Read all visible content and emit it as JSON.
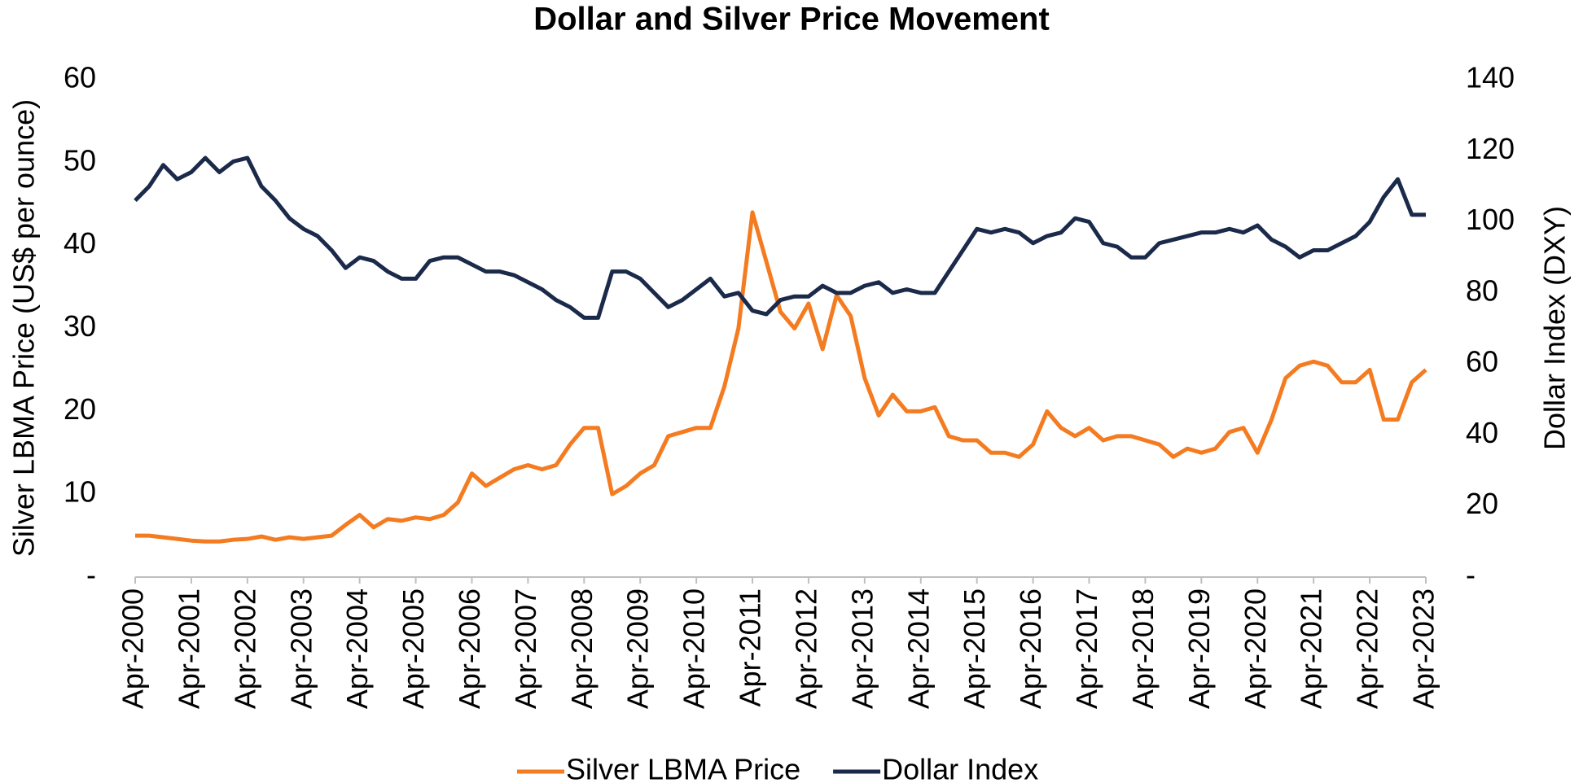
{
  "chart_data": {
    "type": "line",
    "title": "Dollar and Silver Price Movement",
    "y_label": "Silver LBMA Price (US$ per ounce)",
    "y2_label": "Dollar Index (DXY)",
    "legend": "bottom",
    "categories": [
      "Apr-2000",
      null,
      null,
      null,
      "Apr-2001",
      null,
      null,
      null,
      "Apr-2002",
      null,
      null,
      null,
      "Apr-2003",
      null,
      null,
      null,
      "Apr-2004",
      null,
      null,
      null,
      "Apr-2005",
      null,
      null,
      null,
      "Apr-2006",
      null,
      null,
      null,
      "Apr-2007",
      null,
      null,
      null,
      "Apr-2008",
      null,
      null,
      null,
      "Apr-2009",
      null,
      null,
      null,
      "Apr-2010",
      null,
      null,
      null,
      "Apr-2011",
      null,
      null,
      null,
      "Apr-2012",
      null,
      null,
      null,
      "Apr-2013",
      null,
      null,
      null,
      "Apr-2014",
      null,
      null,
      null,
      "Apr-2015",
      null,
      null,
      null,
      "Apr-2016",
      null,
      null,
      null,
      "Apr-2017",
      null,
      null,
      null,
      "Apr-2018",
      null,
      null,
      null,
      "Apr-2019",
      null,
      null,
      null,
      "Apr-2020",
      null,
      null,
      null,
      "Apr-2021",
      null,
      null,
      null,
      "Apr-2022",
      null,
      null,
      null,
      "Apr-2023"
    ],
    "series": [
      {
        "name": "Silver LBMA Price",
        "color": "#f47b20",
        "axis": "y",
        "values": [
          5.0,
          5.0,
          4.8,
          4.6,
          4.4,
          4.3,
          4.3,
          4.5,
          4.6,
          4.9,
          4.5,
          4.8,
          4.6,
          4.8,
          5.0,
          6.3,
          7.5,
          6.0,
          7.0,
          6.8,
          7.2,
          7.0,
          7.5,
          9.0,
          12.5,
          11.0,
          12.0,
          13.0,
          13.5,
          13.0,
          13.5,
          16.0,
          18.0,
          18.0,
          10.0,
          11.0,
          12.5,
          13.5,
          17.0,
          17.5,
          18.0,
          18.0,
          23.0,
          30.0,
          44.0,
          38.0,
          32.0,
          30.0,
          33.0,
          27.5,
          34.0,
          31.5,
          24.0,
          19.5,
          22.0,
          20.0,
          20.0,
          20.5,
          17.0,
          16.5,
          16.5,
          15.0,
          15.0,
          14.5,
          16.0,
          20.0,
          18.0,
          17.0,
          18.0,
          16.5,
          17.0,
          17.0,
          16.5,
          16.0,
          14.5,
          15.5,
          15.0,
          15.5,
          17.5,
          18.0,
          15.0,
          19.0,
          24.0,
          25.5,
          26.0,
          25.5,
          23.5,
          23.5,
          25.0,
          19.0,
          19.0,
          23.5,
          25.0
        ]
      },
      {
        "name": "Dollar Index",
        "color": "#1b2a4a",
        "axis": "y2",
        "values": [
          106,
          110,
          116,
          112,
          114,
          118,
          114,
          117,
          118,
          110,
          106,
          101,
          98,
          96,
          92,
          87,
          90,
          89,
          86,
          84,
          84,
          89,
          90,
          90,
          88,
          86,
          86,
          85,
          83,
          81,
          78,
          76,
          73,
          73,
          86,
          86,
          84,
          80,
          76,
          78,
          81,
          84,
          79,
          80,
          75,
          74,
          78,
          79,
          79,
          82,
          80,
          80,
          82,
          83,
          80,
          81,
          80,
          80,
          86,
          92,
          98,
          97,
          98,
          97,
          94,
          96,
          97,
          101,
          100,
          94,
          93,
          90,
          90,
          94,
          95,
          96,
          97,
          97,
          98,
          97,
          99,
          95,
          93,
          90,
          92,
          92,
          94,
          96,
          100,
          107,
          112,
          102,
          102
        ]
      }
    ],
    "ylim": [
      0,
      60
    ],
    "yticks": [
      {
        "value": 0,
        "label": "-"
      },
      10,
      20,
      30,
      40,
      50,
      60
    ],
    "y2lim": [
      0,
      140
    ],
    "y2ticks": [
      {
        "value": 0,
        "label": "-"
      },
      20,
      40,
      60,
      80,
      100,
      120,
      140
    ]
  }
}
